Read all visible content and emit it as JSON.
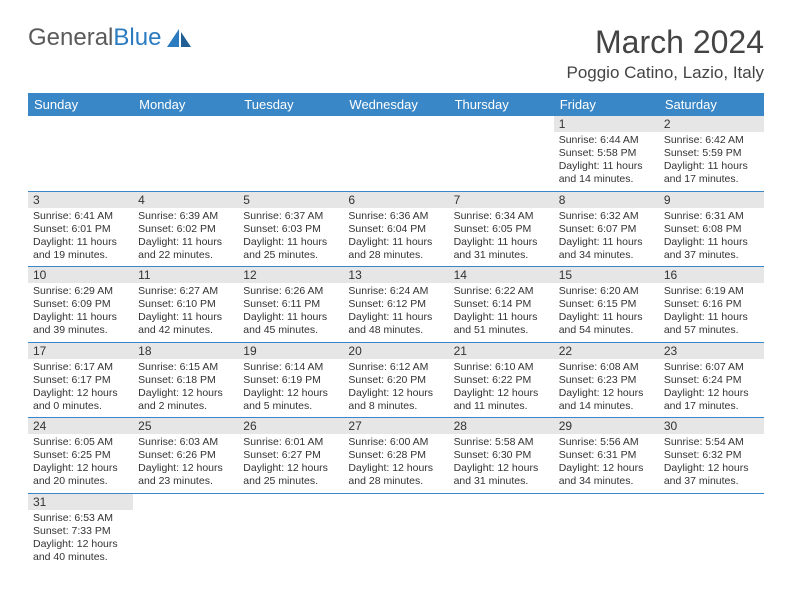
{
  "brand": {
    "word1": "General",
    "word2": "Blue"
  },
  "title": "March 2024",
  "location": "Poggio Catino, Lazio, Italy",
  "colors": {
    "header_bg": "#3a87c7",
    "header_text": "#ffffff",
    "daynum_bg": "#e6e6e6",
    "row_border": "#3a87c7",
    "brand_gray": "#5a5a5a",
    "brand_blue": "#2a7bc0"
  },
  "weekdays": [
    "Sunday",
    "Monday",
    "Tuesday",
    "Wednesday",
    "Thursday",
    "Friday",
    "Saturday"
  ],
  "weeks": [
    [
      null,
      null,
      null,
      null,
      null,
      {
        "n": "1",
        "sr": "6:44 AM",
        "ss": "5:58 PM",
        "dl": "11 hours and 14 minutes."
      },
      {
        "n": "2",
        "sr": "6:42 AM",
        "ss": "5:59 PM",
        "dl": "11 hours and 17 minutes."
      }
    ],
    [
      {
        "n": "3",
        "sr": "6:41 AM",
        "ss": "6:01 PM",
        "dl": "11 hours and 19 minutes."
      },
      {
        "n": "4",
        "sr": "6:39 AM",
        "ss": "6:02 PM",
        "dl": "11 hours and 22 minutes."
      },
      {
        "n": "5",
        "sr": "6:37 AM",
        "ss": "6:03 PM",
        "dl": "11 hours and 25 minutes."
      },
      {
        "n": "6",
        "sr": "6:36 AM",
        "ss": "6:04 PM",
        "dl": "11 hours and 28 minutes."
      },
      {
        "n": "7",
        "sr": "6:34 AM",
        "ss": "6:05 PM",
        "dl": "11 hours and 31 minutes."
      },
      {
        "n": "8",
        "sr": "6:32 AM",
        "ss": "6:07 PM",
        "dl": "11 hours and 34 minutes."
      },
      {
        "n": "9",
        "sr": "6:31 AM",
        "ss": "6:08 PM",
        "dl": "11 hours and 37 minutes."
      }
    ],
    [
      {
        "n": "10",
        "sr": "6:29 AM",
        "ss": "6:09 PM",
        "dl": "11 hours and 39 minutes."
      },
      {
        "n": "11",
        "sr": "6:27 AM",
        "ss": "6:10 PM",
        "dl": "11 hours and 42 minutes."
      },
      {
        "n": "12",
        "sr": "6:26 AM",
        "ss": "6:11 PM",
        "dl": "11 hours and 45 minutes."
      },
      {
        "n": "13",
        "sr": "6:24 AM",
        "ss": "6:12 PM",
        "dl": "11 hours and 48 minutes."
      },
      {
        "n": "14",
        "sr": "6:22 AM",
        "ss": "6:14 PM",
        "dl": "11 hours and 51 minutes."
      },
      {
        "n": "15",
        "sr": "6:20 AM",
        "ss": "6:15 PM",
        "dl": "11 hours and 54 minutes."
      },
      {
        "n": "16",
        "sr": "6:19 AM",
        "ss": "6:16 PM",
        "dl": "11 hours and 57 minutes."
      }
    ],
    [
      {
        "n": "17",
        "sr": "6:17 AM",
        "ss": "6:17 PM",
        "dl": "12 hours and 0 minutes."
      },
      {
        "n": "18",
        "sr": "6:15 AM",
        "ss": "6:18 PM",
        "dl": "12 hours and 2 minutes."
      },
      {
        "n": "19",
        "sr": "6:14 AM",
        "ss": "6:19 PM",
        "dl": "12 hours and 5 minutes."
      },
      {
        "n": "20",
        "sr": "6:12 AM",
        "ss": "6:20 PM",
        "dl": "12 hours and 8 minutes."
      },
      {
        "n": "21",
        "sr": "6:10 AM",
        "ss": "6:22 PM",
        "dl": "12 hours and 11 minutes."
      },
      {
        "n": "22",
        "sr": "6:08 AM",
        "ss": "6:23 PM",
        "dl": "12 hours and 14 minutes."
      },
      {
        "n": "23",
        "sr": "6:07 AM",
        "ss": "6:24 PM",
        "dl": "12 hours and 17 minutes."
      }
    ],
    [
      {
        "n": "24",
        "sr": "6:05 AM",
        "ss": "6:25 PM",
        "dl": "12 hours and 20 minutes."
      },
      {
        "n": "25",
        "sr": "6:03 AM",
        "ss": "6:26 PM",
        "dl": "12 hours and 23 minutes."
      },
      {
        "n": "26",
        "sr": "6:01 AM",
        "ss": "6:27 PM",
        "dl": "12 hours and 25 minutes."
      },
      {
        "n": "27",
        "sr": "6:00 AM",
        "ss": "6:28 PM",
        "dl": "12 hours and 28 minutes."
      },
      {
        "n": "28",
        "sr": "5:58 AM",
        "ss": "6:30 PM",
        "dl": "12 hours and 31 minutes."
      },
      {
        "n": "29",
        "sr": "5:56 AM",
        "ss": "6:31 PM",
        "dl": "12 hours and 34 minutes."
      },
      {
        "n": "30",
        "sr": "5:54 AM",
        "ss": "6:32 PM",
        "dl": "12 hours and 37 minutes."
      }
    ],
    [
      {
        "n": "31",
        "sr": "6:53 AM",
        "ss": "7:33 PM",
        "dl": "12 hours and 40 minutes."
      },
      null,
      null,
      null,
      null,
      null,
      null
    ]
  ],
  "labels": {
    "sunrise": "Sunrise:",
    "sunset": "Sunset:",
    "daylight": "Daylight:"
  }
}
